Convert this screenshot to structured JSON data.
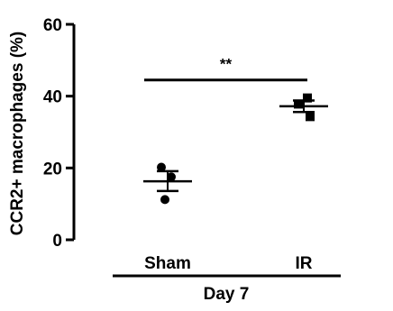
{
  "chart_data": {
    "type": "scatter",
    "ylabel": "CCR2+ macrophages (%)",
    "ylim": [
      0,
      60
    ],
    "yticks": [
      0,
      20,
      40,
      60
    ],
    "yticks_labels": [
      "0",
      "20",
      "40",
      "60"
    ],
    "categories": [
      "Sham",
      "IR"
    ],
    "group_label": "Day 7",
    "significance": {
      "label": "**",
      "between": [
        "Sham",
        "IR"
      ],
      "y": 44.5
    },
    "series": [
      {
        "category": "Sham",
        "marker": "circle",
        "points": [
          20.2,
          17.5,
          11.2
        ],
        "mean": 16.3,
        "sem_upper": 19.1,
        "sem_lower": 13.6
      },
      {
        "category": "IR",
        "marker": "square",
        "points": [
          39.5,
          37.8,
          34.3
        ],
        "mean": 37.2,
        "sem_upper": 38.8,
        "sem_lower": 35.6
      }
    ],
    "grid": false,
    "legend": "none"
  }
}
